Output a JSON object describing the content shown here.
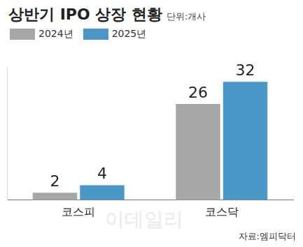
{
  "chart_data": {
    "type": "bar",
    "title": "상반기 IPO 상장 현황",
    "subtitle": "단위:개사",
    "categories": [
      "코스피",
      "코스닥"
    ],
    "series": [
      {
        "name": "2024년",
        "color": "#a6a6a6",
        "values": [
          2,
          26
        ]
      },
      {
        "name": "2025년",
        "color": "#4a98c9",
        "values": [
          4,
          32
        ]
      }
    ],
    "ylim": [
      0,
      36
    ],
    "grid": false,
    "legend": "top-left",
    "data_labels": true,
    "tick_labels": "x",
    "source": "자료:엠피닥터",
    "watermark": "이데일리"
  }
}
